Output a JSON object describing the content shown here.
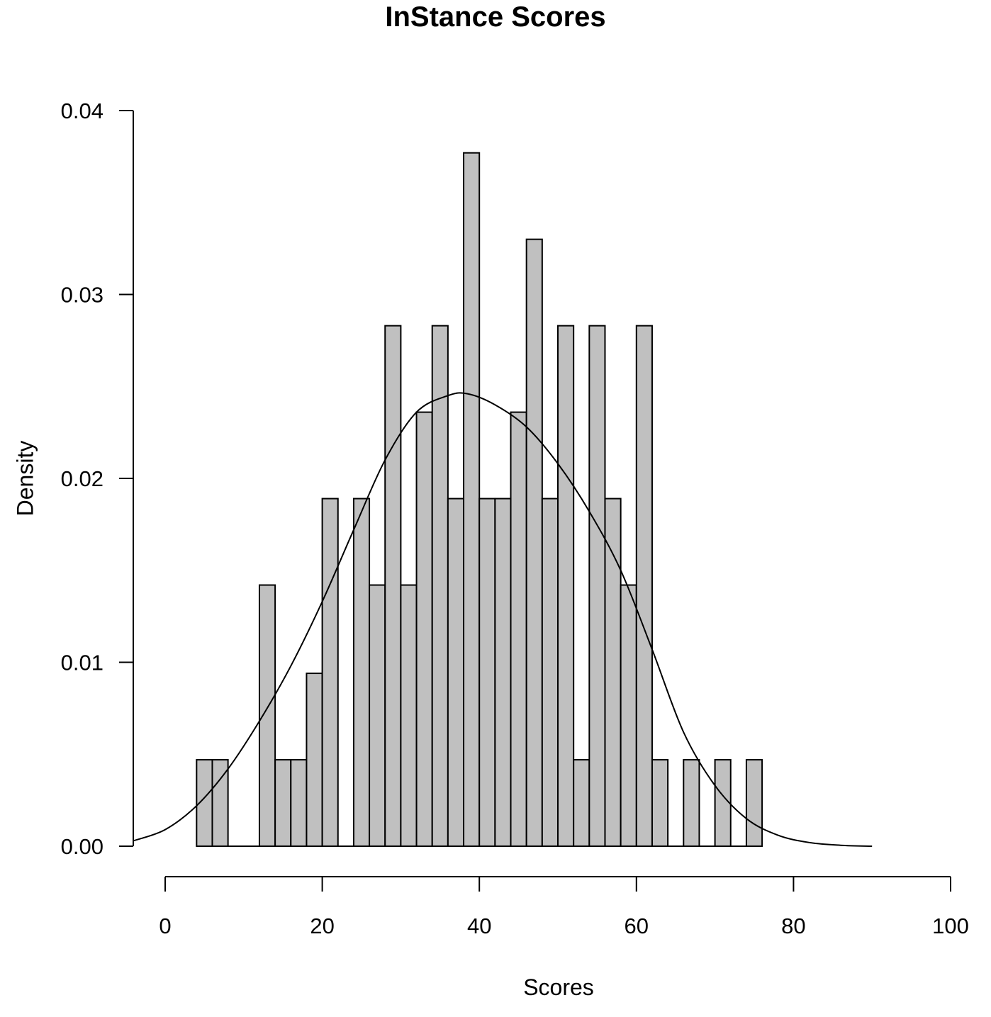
{
  "chart_data": {
    "type": "bar",
    "subtype": "histogram_with_density",
    "title": "InStance Scores",
    "xlabel": "Scores",
    "ylabel": "Density",
    "xlim": [
      0,
      100
    ],
    "ylim": [
      0,
      0.04
    ],
    "x_ticks": [
      "0",
      "20",
      "40",
      "60",
      "80",
      "100"
    ],
    "y_ticks": [
      "0.00",
      "0.01",
      "0.02",
      "0.03",
      "0.04"
    ],
    "grid": false,
    "legend": null,
    "bin_width": 2,
    "bin_start": 4,
    "bar_fill": "#c0c0c0",
    "bar_stroke": "#000000",
    "categories": [
      "4-6",
      "6-8",
      "8-10",
      "10-12",
      "12-14",
      "14-16",
      "16-18",
      "18-20",
      "20-22",
      "22-24",
      "24-26",
      "26-28",
      "28-30",
      "30-32",
      "32-34",
      "34-36",
      "36-38",
      "38-40",
      "40-42",
      "42-44",
      "44-46",
      "46-48",
      "48-50",
      "50-52",
      "52-54",
      "54-56",
      "56-58",
      "58-60",
      "60-62",
      "62-64",
      "64-66",
      "66-68",
      "68-70",
      "70-72",
      "72-74",
      "74-76"
    ],
    "values": [
      0.0047,
      0.0047,
      0,
      0,
      0.0142,
      0.0047,
      0.0047,
      0.0094,
      0.0189,
      0,
      0.0189,
      0.0142,
      0.0283,
      0.0142,
      0.0236,
      0.0283,
      0.0189,
      0.0377,
      0.0189,
      0.0189,
      0.0236,
      0.033,
      0.0189,
      0.0283,
      0.0047,
      0.0283,
      0.0189,
      0.0142,
      0.0283,
      0.0047,
      0,
      0.0047,
      0,
      0.0047,
      0,
      0.0047
    ],
    "density_curve": {
      "x": [
        -4,
        0,
        4,
        8,
        12,
        16,
        20,
        24,
        28,
        32,
        36,
        38.5,
        42,
        46,
        50,
        54,
        58,
        62,
        66,
        70,
        74,
        78,
        82,
        86,
        90
      ],
      "y": [
        0.0003,
        0.0009,
        0.0022,
        0.0042,
        0.0068,
        0.0098,
        0.0133,
        0.0172,
        0.021,
        0.0236,
        0.0245,
        0.0246,
        0.024,
        0.0228,
        0.0208,
        0.0182,
        0.015,
        0.0107,
        0.0062,
        0.0033,
        0.0015,
        0.0006,
        0.0002,
        5e-05,
        0.0
      ]
    }
  }
}
